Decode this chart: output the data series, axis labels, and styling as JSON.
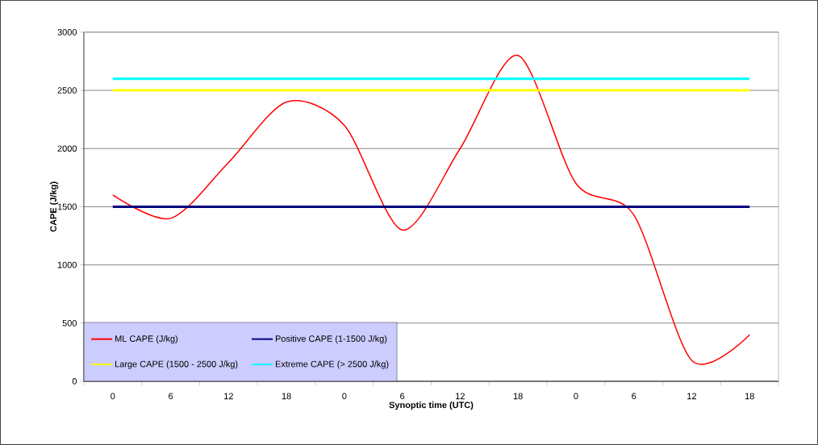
{
  "chart_data": {
    "type": "line",
    "xlabel": "Synoptic time (UTC)",
    "ylabel": "CAPE (J/kg)",
    "categories": [
      "0",
      "6",
      "12",
      "18",
      "0",
      "6",
      "12",
      "18",
      "0",
      "6",
      "12",
      "18"
    ],
    "series": [
      {
        "name": "ML CAPE (J/kg)",
        "color": "#ff0000",
        "values": [
          1600,
          1400,
          1880,
          2400,
          2200,
          1300,
          2000,
          2800,
          1700,
          1430,
          180,
          400
        ]
      },
      {
        "name": "Positive CAPE (1-1500 J/kg)",
        "color": "#000080",
        "values": [
          1500,
          1500,
          1500,
          1500,
          1500,
          1500,
          1500,
          1500,
          1500,
          1500,
          1500,
          1500
        ]
      },
      {
        "name": "Large CAPE (1500 - 2500 J/kg)",
        "color": "#ffff00",
        "values": [
          2500,
          2500,
          2500,
          2500,
          2500,
          2500,
          2500,
          2500,
          2500,
          2500,
          2500,
          2500
        ]
      },
      {
        "name": "Extreme CAPE (> 2500 J/kg)",
        "color": "#00ffff",
        "values": [
          2600,
          2600,
          2600,
          2600,
          2600,
          2600,
          2600,
          2600,
          2600,
          2600,
          2600,
          2600
        ]
      }
    ],
    "ylim": [
      0,
      3000
    ],
    "yticks": [
      0,
      500,
      1000,
      1500,
      2000,
      2500,
      3000
    ],
    "grid": "y",
    "legend": "bottom left",
    "marker": "none",
    "line_style": "solid"
  }
}
